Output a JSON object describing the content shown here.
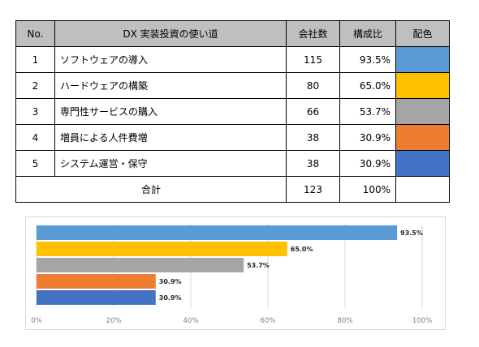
{
  "table": {
    "headers": [
      "No.",
      "DX 実装投資の使い道",
      "会社数",
      "構成比",
      "配色"
    ],
    "rows": [
      {
        "no": "1",
        "use": "ソフトウェアの導入",
        "count": "115",
        "ratio": "93.5%",
        "color": "#5b9bd5"
      },
      {
        "no": "2",
        "use": "ハードウェアの構築",
        "count": "80",
        "ratio": "65.0%",
        "color": "#ffc000"
      },
      {
        "no": "3",
        "use": "専門性サービスの購入",
        "count": "66",
        "ratio": "53.7%",
        "color": "#a5a5a5"
      },
      {
        "no": "4",
        "use": "増員による人件費増",
        "count": "38",
        "ratio": "30.9%",
        "color": "#ed7d31"
      },
      {
        "no": "5",
        "use": "システム運営・保守",
        "count": "38",
        "ratio": "30.9%",
        "color": "#4472c4"
      }
    ],
    "total": {
      "label": "合計",
      "count": "123",
      "ratio": "100%"
    }
  },
  "chart_data": {
    "type": "bar",
    "orientation": "horizontal",
    "values": [
      93.5,
      65.0,
      53.7,
      30.9,
      30.9
    ],
    "data_labels": [
      "93.5%",
      "65.0%",
      "53.7%",
      "30.9%",
      "30.9%"
    ],
    "colors": [
      "#5b9bd5",
      "#ffc000",
      "#a5a5a5",
      "#ed7d31",
      "#4472c4"
    ],
    "xlim": [
      0,
      100
    ],
    "xticks": [
      0,
      20,
      40,
      60,
      80,
      100
    ],
    "xtick_labels": [
      "0%",
      "20%",
      "40%",
      "60%",
      "80%",
      "100%"
    ],
    "grid": true,
    "title": "",
    "xlabel": "",
    "ylabel": ""
  }
}
